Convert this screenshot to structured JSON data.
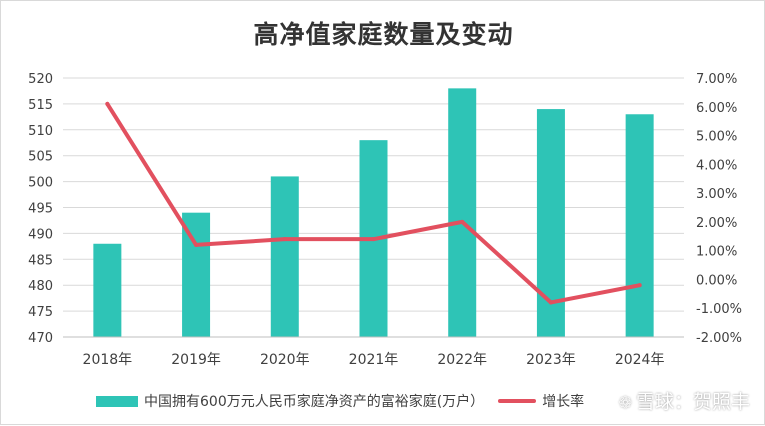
{
  "chart_data": {
    "type": "bar+line",
    "title": "高净值家庭数量及变动",
    "categories": [
      "2018年",
      "2019年",
      "2020年",
      "2021年",
      "2022年",
      "2023年",
      "2024年"
    ],
    "series": [
      {
        "name": "中国拥有600万元人民币家庭净资产的富裕家庭(万户）",
        "type": "bar",
        "axis": "left",
        "values": [
          488,
          494,
          501,
          508,
          518,
          514,
          513
        ]
      },
      {
        "name": "增长率",
        "type": "line",
        "axis": "right",
        "values": [
          6.1,
          1.2,
          1.4,
          1.4,
          2.0,
          -0.8,
          -0.2
        ]
      }
    ],
    "y_left": {
      "min": 470,
      "max": 520,
      "step": 5,
      "tick_labels": [
        "470",
        "475",
        "480",
        "485",
        "490",
        "495",
        "500",
        "505",
        "510",
        "515",
        "520"
      ]
    },
    "y_right": {
      "min": -2,
      "max": 7,
      "step": 1,
      "tick_labels": [
        "-2.00%",
        "-1.00%",
        "0.00%",
        "1.00%",
        "2.00%",
        "3.00%",
        "4.00%",
        "5.00%",
        "6.00%",
        "7.00%"
      ]
    },
    "grid": true,
    "legend_position": "bottom",
    "colors": {
      "bar": "#2ec4b6",
      "line": "#e2505f",
      "grid": "#d9d9d9"
    }
  },
  "watermark": {
    "logo": "❁",
    "text": "雪球：贺照丰"
  }
}
